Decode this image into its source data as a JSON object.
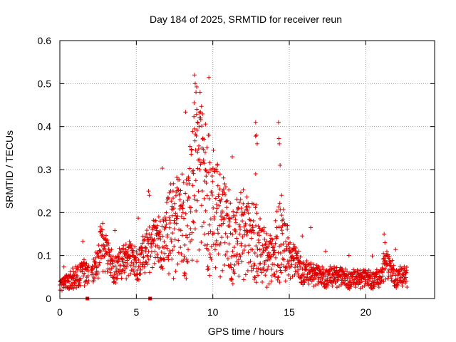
{
  "chart_data": {
    "type": "scatter",
    "title": "Day 184 of 2025, SRMTID for receiver reun",
    "xlabel": "GPS time / hours",
    "ylabel": "SRMTID / TECUs",
    "xlim": [
      0,
      24.5
    ],
    "ylim": [
      0,
      0.6
    ],
    "xticks": [
      0,
      5,
      10,
      15,
      20
    ],
    "yticks": [
      0,
      0.1,
      0.2,
      0.3,
      0.4,
      0.5,
      0.6
    ],
    "xtick_labels": [
      "0",
      "5",
      "10",
      "15",
      "20"
    ],
    "ytick_labels": [
      "0",
      "0.1",
      "0.2",
      "0.3",
      "0.4",
      "0.5",
      "0.6"
    ],
    "grid": true,
    "marker": "plus",
    "color": "#e00000",
    "trend": [
      [
        0,
        0.03
      ],
      [
        0.5,
        0.04
      ],
      [
        1,
        0.045
      ],
      [
        1.5,
        0.06
      ],
      [
        2,
        0.05
      ],
      [
        2.5,
        0.08
      ],
      [
        2.7,
        0.13
      ],
      [
        3,
        0.1
      ],
      [
        3.5,
        0.07
      ],
      [
        4,
        0.08
      ],
      [
        4.5,
        0.09
      ],
      [
        5,
        0.08
      ],
      [
        5.5,
        0.1
      ],
      [
        6,
        0.12
      ],
      [
        6.5,
        0.13
      ],
      [
        7,
        0.15
      ],
      [
        7.5,
        0.16
      ],
      [
        8,
        0.17
      ],
      [
        8.5,
        0.2
      ],
      [
        8.8,
        0.27
      ],
      [
        9,
        0.3
      ],
      [
        9.3,
        0.26
      ],
      [
        9.7,
        0.22
      ],
      [
        10,
        0.2
      ],
      [
        10.5,
        0.17
      ],
      [
        11,
        0.15
      ],
      [
        11.5,
        0.13
      ],
      [
        12,
        0.15
      ],
      [
        12.5,
        0.12
      ],
      [
        12.8,
        0.16
      ],
      [
        13,
        0.11
      ],
      [
        13.5,
        0.09
      ],
      [
        14,
        0.08
      ],
      [
        14.3,
        0.16
      ],
      [
        14.6,
        0.12
      ],
      [
        15,
        0.09
      ],
      [
        15.5,
        0.08
      ],
      [
        16,
        0.06
      ],
      [
        17,
        0.05
      ],
      [
        18,
        0.05
      ],
      [
        19,
        0.045
      ],
      [
        20,
        0.045
      ],
      [
        21,
        0.045
      ],
      [
        21.2,
        0.08
      ],
      [
        22,
        0.05
      ],
      [
        22.7,
        0.05
      ]
    ],
    "highlights": [
      [
        8.8,
        0.52
      ],
      [
        8.85,
        0.5
      ],
      [
        8.9,
        0.48
      ],
      [
        8.95,
        0.44
      ],
      [
        9.0,
        0.41
      ],
      [
        9.1,
        0.4
      ],
      [
        9.2,
        0.42
      ],
      [
        9.3,
        0.35
      ],
      [
        9.5,
        0.34
      ],
      [
        9.7,
        0.38
      ],
      [
        9.75,
        0.38
      ],
      [
        10.3,
        0.31
      ],
      [
        12.8,
        0.41
      ],
      [
        12.85,
        0.38
      ],
      [
        12.9,
        0.36
      ],
      [
        12.8,
        0.29
      ],
      [
        14.3,
        0.41
      ],
      [
        14.35,
        0.36
      ],
      [
        14.4,
        0.31
      ],
      [
        14.5,
        0.24
      ],
      [
        5.8,
        0.25
      ],
      [
        5.85,
        0.24
      ],
      [
        7.4,
        0.25
      ],
      [
        8.4,
        0.28
      ],
      [
        21.2,
        0.15
      ],
      [
        21.25,
        0.13
      ],
      [
        16.4,
        0.165
      ]
    ],
    "square_markers": [
      [
        1.8,
        0.0
      ],
      [
        5.9,
        0.0
      ]
    ]
  }
}
